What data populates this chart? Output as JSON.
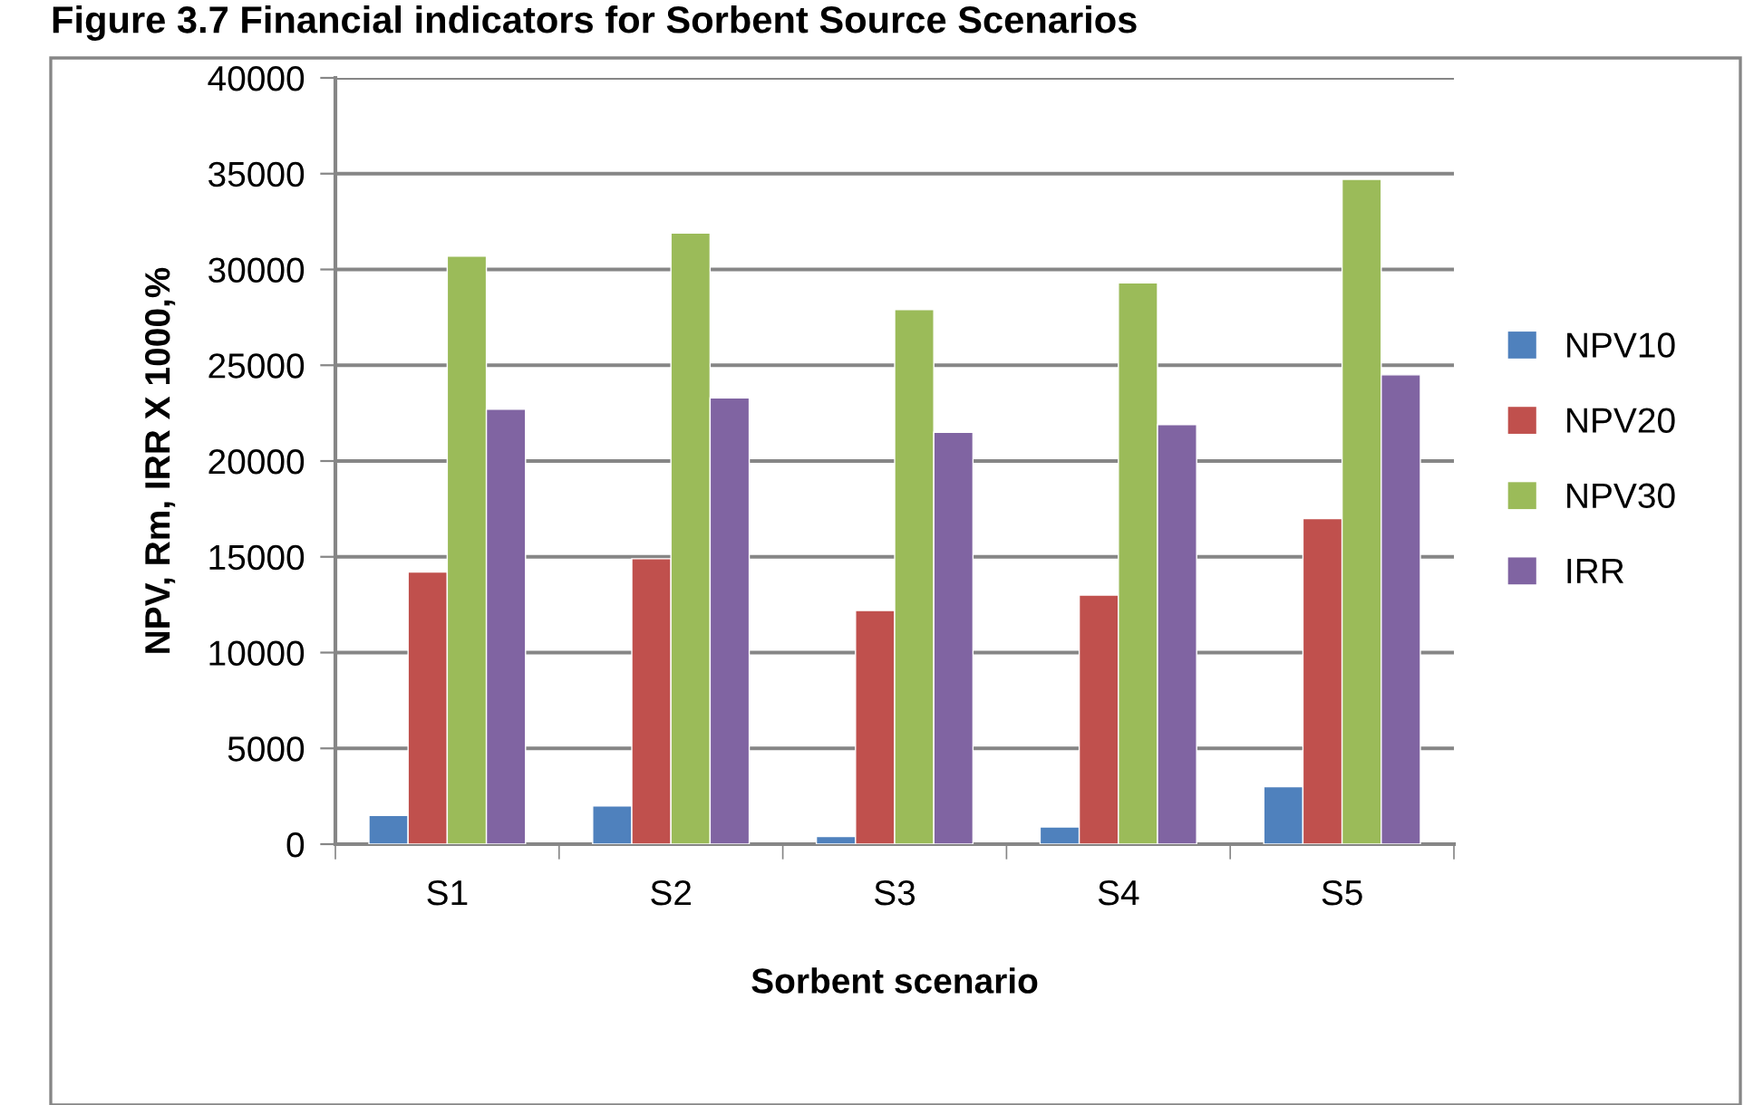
{
  "chart_data": {
    "type": "bar",
    "title": "Figure 3.7 Financial indicators for Sorbent Source Scenarios",
    "xlabel": "Sorbent scenario",
    "ylabel": "NPV, Rm, IRR X 1000,%",
    "categories": [
      "S1",
      "S2",
      "S3",
      "S4",
      "S5"
    ],
    "series": [
      {
        "name": "NPV10",
        "color": "#4f81bd",
        "values": [
          1500,
          2000,
          400,
          900,
          3000
        ]
      },
      {
        "name": "NPV20",
        "color": "#c0504d",
        "values": [
          14200,
          14900,
          12200,
          13000,
          17000
        ]
      },
      {
        "name": "NPV30",
        "color": "#9bbb59",
        "values": [
          30700,
          31900,
          27900,
          29300,
          34700
        ]
      },
      {
        "name": "IRR",
        "color": "#8064a2",
        "values": [
          22700,
          23300,
          21500,
          21900,
          24500
        ]
      }
    ],
    "ylim": [
      0,
      40000
    ],
    "yticks": [
      0,
      5000,
      10000,
      15000,
      20000,
      25000,
      30000,
      35000,
      40000
    ],
    "grid": "y",
    "legend": "right"
  }
}
